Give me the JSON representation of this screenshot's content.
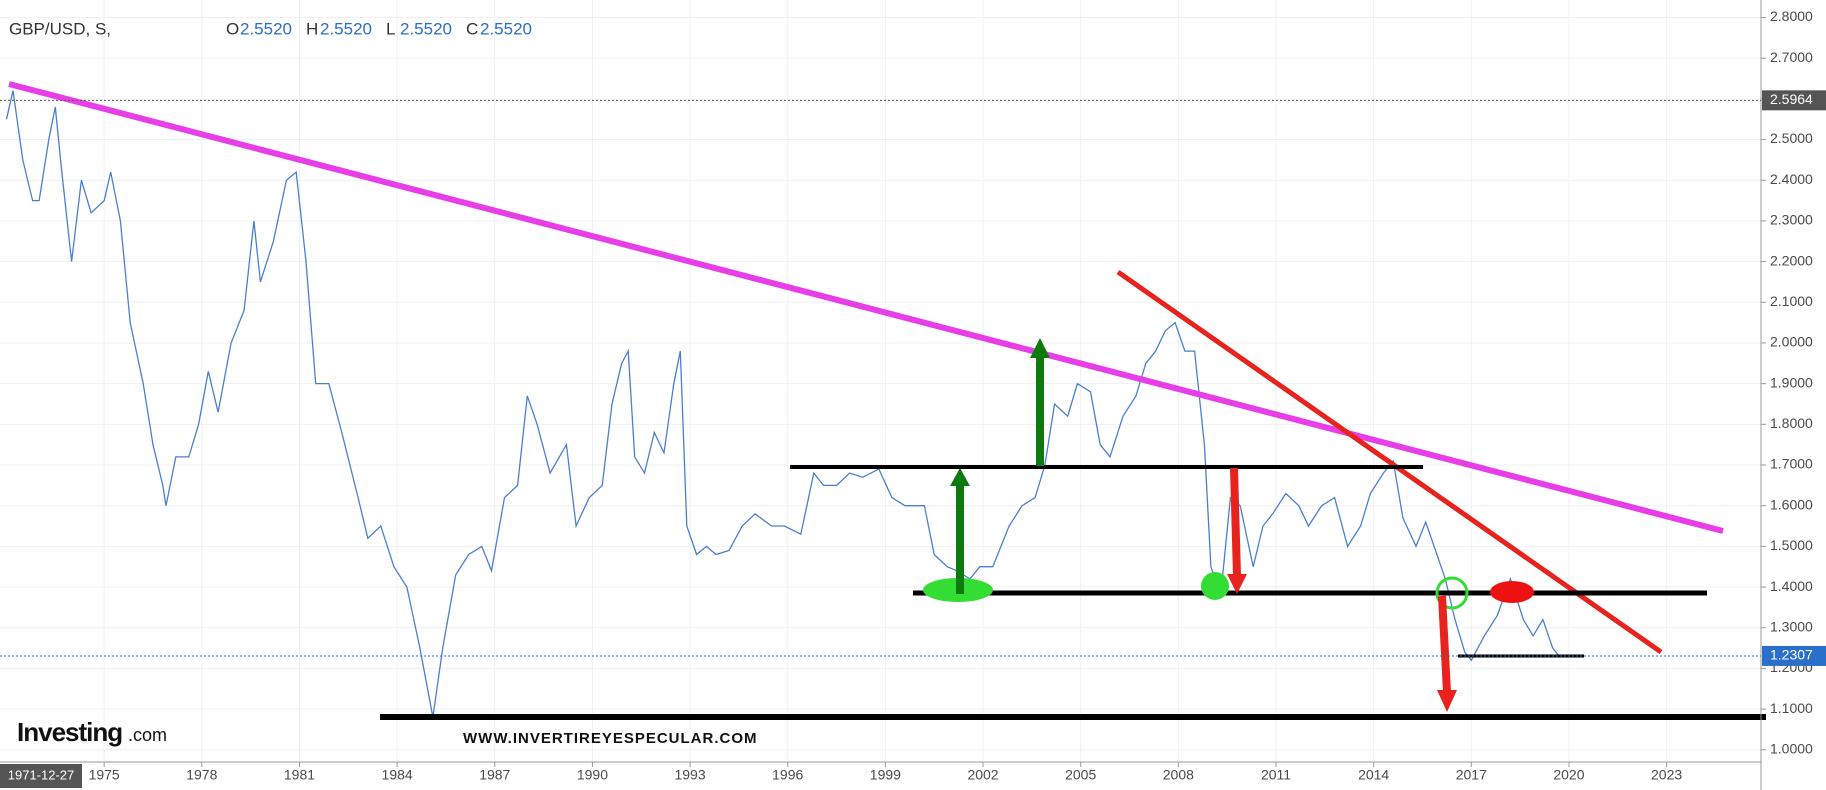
{
  "chart_data": {
    "type": "line",
    "title": "GBP/USD, S,",
    "ohlc": [
      {
        "label": "O",
        "value": "2.5520"
      },
      {
        "label": "H",
        "value": "2.5520"
      },
      {
        "label": "L",
        "value": "2.5520"
      },
      {
        "label": "C",
        "value": "2.5520"
      }
    ],
    "logo": "Investing",
    "logo_suffix": ".com",
    "watermark": "WWW.INVERTIREYESPECULAR.COM",
    "cursor_date": "1971-12-27",
    "price_labels": [
      {
        "value": 2.5964,
        "color": "#555555"
      },
      {
        "value": 1.2307,
        "color": "#2a6fc9"
      }
    ],
    "xlim": [
      1971.8,
      2025.9
    ],
    "ylim": [
      0.97,
      2.843
    ],
    "xticks": [
      1975,
      1978,
      1981,
      1984,
      1987,
      1990,
      1993,
      1996,
      1999,
      2002,
      2005,
      2008,
      2011,
      2014,
      2017,
      2020,
      2023
    ],
    "yticks": [
      {
        "value": 1.0,
        "label": "1.0000"
      },
      {
        "value": 1.1,
        "label": "1.1000"
      },
      {
        "value": 1.2,
        "label": "1.2000"
      },
      {
        "value": 1.3,
        "label": "1.3000"
      },
      {
        "value": 1.4,
        "label": "1.4000"
      },
      {
        "value": 1.5,
        "label": "1.5000"
      },
      {
        "value": 1.6,
        "label": "1.6000"
      },
      {
        "value": 1.7,
        "label": "1.7000"
      },
      {
        "value": 1.8,
        "label": "1.8000"
      },
      {
        "value": 1.9,
        "label": "1.9000"
      },
      {
        "value": 2.0,
        "label": "2.0000"
      },
      {
        "value": 2.1,
        "label": "2.1000"
      },
      {
        "value": 2.2,
        "label": "2.2000"
      },
      {
        "value": 2.3,
        "label": "2.3000"
      },
      {
        "value": 2.4,
        "label": "2.4000"
      },
      {
        "value": 2.5,
        "label": "2.5000"
      },
      {
        "value": 2.6,
        "label": "2.6000"
      },
      {
        "value": 2.7,
        "label": "2.7000"
      },
      {
        "value": 2.8,
        "label": "2.8000"
      }
    ],
    "grid": true,
    "series": [
      {
        "name": "GBP/USD",
        "color": "#4a7fd0",
        "x": [
          1972.0,
          1972.2,
          1972.5,
          1972.8,
          1973.0,
          1973.3,
          1973.5,
          1973.7,
          1974.0,
          1974.3,
          1974.6,
          1975.0,
          1975.2,
          1975.5,
          1975.8,
          1976.2,
          1976.5,
          1976.8,
          1976.9,
          1977.2,
          1977.6,
          1977.9,
          1978.2,
          1978.5,
          1978.9,
          1979.3,
          1979.6,
          1979.8,
          1980.2,
          1980.6,
          1980.9,
          1981.2,
          1981.5,
          1981.9,
          1982.3,
          1982.8,
          1983.1,
          1983.5,
          1983.9,
          1984.3,
          1984.7,
          1985.1,
          1985.4,
          1985.8,
          1986.2,
          1986.6,
          1986.9,
          1987.3,
          1987.7,
          1988.0,
          1988.3,
          1988.7,
          1989.2,
          1989.5,
          1989.9,
          1990.3,
          1990.6,
          1990.9,
          1991.1,
          1991.3,
          1991.6,
          1991.9,
          1992.2,
          1992.5,
          1992.7,
          1992.9,
          1993.2,
          1993.5,
          1993.8,
          1994.2,
          1994.6,
          1995.0,
          1995.5,
          1995.9,
          1996.4,
          1996.8,
          1997.1,
          1997.5,
          1997.9,
          1998.3,
          1998.8,
          1999.2,
          1999.6,
          2000.2,
          2000.5,
          2000.9,
          2001.2,
          2001.6,
          2001.9,
          2002.3,
          2002.8,
          2003.2,
          2003.6,
          2003.9,
          2004.2,
          2004.6,
          2004.9,
          2005.3,
          2005.6,
          2005.9,
          2006.3,
          2006.7,
          2007.0,
          2007.3,
          2007.6,
          2007.9,
          2008.2,
          2008.5,
          2008.8,
          2009.0,
          2009.3,
          2009.6,
          2009.9,
          2010.3,
          2010.6,
          2010.9,
          2011.3,
          2011.7,
          2012.0,
          2012.4,
          2012.8,
          2013.2,
          2013.6,
          2013.9,
          2014.3,
          2014.6,
          2014.9,
          2015.3,
          2015.6,
          2015.9,
          2016.2,
          2016.5,
          2016.8,
          2017.0,
          2017.4,
          2017.8,
          2018.2,
          2018.6,
          2018.9,
          2019.2,
          2019.5,
          2019.7
        ],
        "values": [
          2.55,
          2.62,
          2.45,
          2.35,
          2.35,
          2.5,
          2.58,
          2.42,
          2.2,
          2.4,
          2.32,
          2.35,
          2.42,
          2.3,
          2.05,
          1.9,
          1.75,
          1.65,
          1.6,
          1.72,
          1.72,
          1.8,
          1.93,
          1.83,
          2.0,
          2.08,
          2.3,
          2.15,
          2.25,
          2.4,
          2.42,
          2.2,
          1.9,
          1.9,
          1.78,
          1.62,
          1.52,
          1.55,
          1.45,
          1.4,
          1.25,
          1.08,
          1.25,
          1.43,
          1.48,
          1.5,
          1.44,
          1.62,
          1.65,
          1.87,
          1.8,
          1.68,
          1.75,
          1.55,
          1.62,
          1.65,
          1.85,
          1.95,
          1.98,
          1.72,
          1.68,
          1.78,
          1.73,
          1.9,
          1.98,
          1.55,
          1.48,
          1.5,
          1.48,
          1.49,
          1.55,
          1.58,
          1.55,
          1.55,
          1.53,
          1.68,
          1.65,
          1.65,
          1.68,
          1.67,
          1.69,
          1.62,
          1.6,
          1.6,
          1.48,
          1.45,
          1.44,
          1.42,
          1.45,
          1.45,
          1.55,
          1.6,
          1.62,
          1.7,
          1.85,
          1.82,
          1.9,
          1.88,
          1.75,
          1.72,
          1.82,
          1.87,
          1.95,
          1.98,
          2.03,
          2.05,
          1.98,
          1.98,
          1.75,
          1.45,
          1.38,
          1.62,
          1.6,
          1.45,
          1.55,
          1.58,
          1.63,
          1.6,
          1.55,
          1.6,
          1.62,
          1.5,
          1.55,
          1.63,
          1.68,
          1.71,
          1.57,
          1.5,
          1.56,
          1.49,
          1.42,
          1.32,
          1.24,
          1.22,
          1.28,
          1.33,
          1.42,
          1.32,
          1.28,
          1.32,
          1.25,
          1.23
        ]
      }
    ]
  }
}
